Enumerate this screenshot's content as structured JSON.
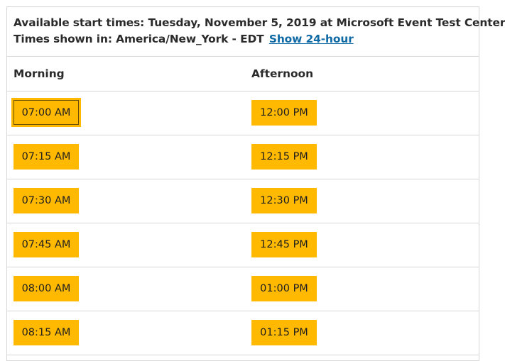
{
  "header": {
    "line1": "Available start times: Tuesday, November 5, 2019 at Microsoft Event Test Center",
    "line2_prefix": "Times shown in: America/New_York - EDT",
    "toggle_link": "Show 24-hour"
  },
  "columns": {
    "morning": "Morning",
    "afternoon": "Afternoon"
  },
  "slots": {
    "morning": [
      "07:00 AM",
      "07:15 AM",
      "07:30 AM",
      "07:45 AM",
      "08:00 AM",
      "08:15 AM"
    ],
    "afternoon": [
      "12:00 PM",
      "12:15 PM",
      "12:30 PM",
      "12:45 PM",
      "01:00 PM",
      "01:15 PM"
    ],
    "selected": "07:00 AM"
  },
  "colors": {
    "slot_background": "#ffb900",
    "link": "#0f6aa6",
    "divider": "#d8d8d8"
  }
}
